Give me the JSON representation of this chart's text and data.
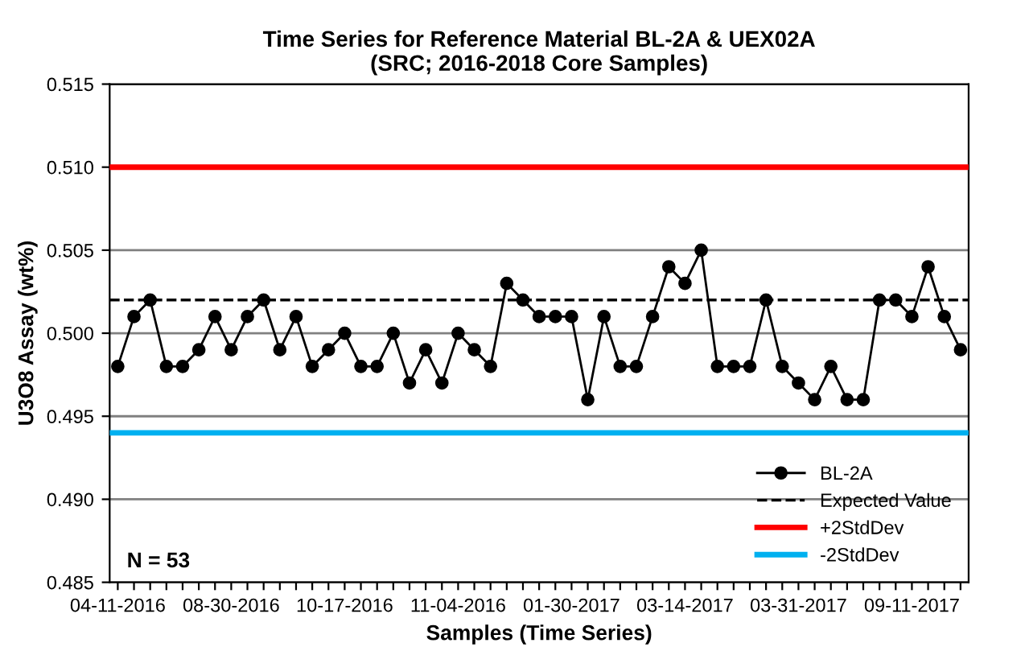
{
  "chart_data": {
    "type": "line",
    "title": "Time Series for Reference Material BL-2A & UEX02A\n(SRC; 2016-2018 Core Samples)",
    "xlabel": "Samples (Time Series)",
    "ylabel": "U3O8 Assay (wt%)",
    "categories": [
      "04-11-2016",
      null,
      null,
      null,
      null,
      null,
      null,
      "08-30-2016",
      null,
      null,
      null,
      null,
      null,
      null,
      "10-17-2016",
      null,
      null,
      null,
      null,
      null,
      null,
      "11-04-2016",
      null,
      null,
      null,
      null,
      null,
      null,
      "01-30-2017",
      null,
      null,
      null,
      null,
      null,
      null,
      "03-14-2017",
      null,
      null,
      null,
      null,
      null,
      null,
      "03-31-2017",
      null,
      null,
      null,
      null,
      null,
      null,
      "09-11-2017",
      null,
      null,
      null
    ],
    "series": [
      {
        "name": "BL-2A",
        "color": "#000000",
        "values": [
          0.498,
          0.501,
          0.502,
          0.498,
          0.498,
          0.499,
          0.501,
          0.499,
          0.501,
          0.502,
          0.499,
          0.501,
          0.498,
          0.499,
          0.5,
          0.498,
          0.498,
          0.5,
          0.497,
          0.499,
          0.497,
          0.5,
          0.499,
          0.498,
          0.503,
          0.502,
          0.501,
          0.501,
          0.501,
          0.496,
          0.501,
          0.498,
          0.498,
          0.501,
          0.504,
          0.503,
          0.505,
          0.498,
          0.498,
          0.498,
          0.502,
          0.498,
          0.497,
          0.496,
          0.498,
          0.496,
          0.496,
          0.502,
          0.502,
          0.501,
          0.504,
          0.501,
          0.499
        ]
      }
    ],
    "ref_lines": [
      {
        "axis": "y",
        "value": 0.502,
        "label": "Expected Value",
        "color": "#000000",
        "line_style": "dashed"
      },
      {
        "axis": "y",
        "value": 0.51,
        "label": "+2StdDev",
        "color": "#ff0000",
        "line_style": "solid"
      },
      {
        "axis": "y",
        "value": 0.494,
        "label": "-2StdDev",
        "color": "#00b0f0",
        "line_style": "solid"
      }
    ],
    "ylim": [
      0.485,
      0.515
    ],
    "yticks": [
      {
        "value": 0.485,
        "label": "0.485"
      },
      {
        "value": 0.49,
        "label": "0.490"
      },
      {
        "value": 0.495,
        "label": "0.495"
      },
      {
        "value": 0.5,
        "label": "0.500"
      },
      {
        "value": 0.505,
        "label": "0.505"
      },
      {
        "value": 0.51,
        "label": "0.510"
      },
      {
        "value": 0.515,
        "label": "0.515"
      }
    ],
    "grid": "y",
    "legend": "bottom right",
    "marker": "circle",
    "line_style": "solid",
    "annotations": [
      "N = 53"
    ]
  }
}
